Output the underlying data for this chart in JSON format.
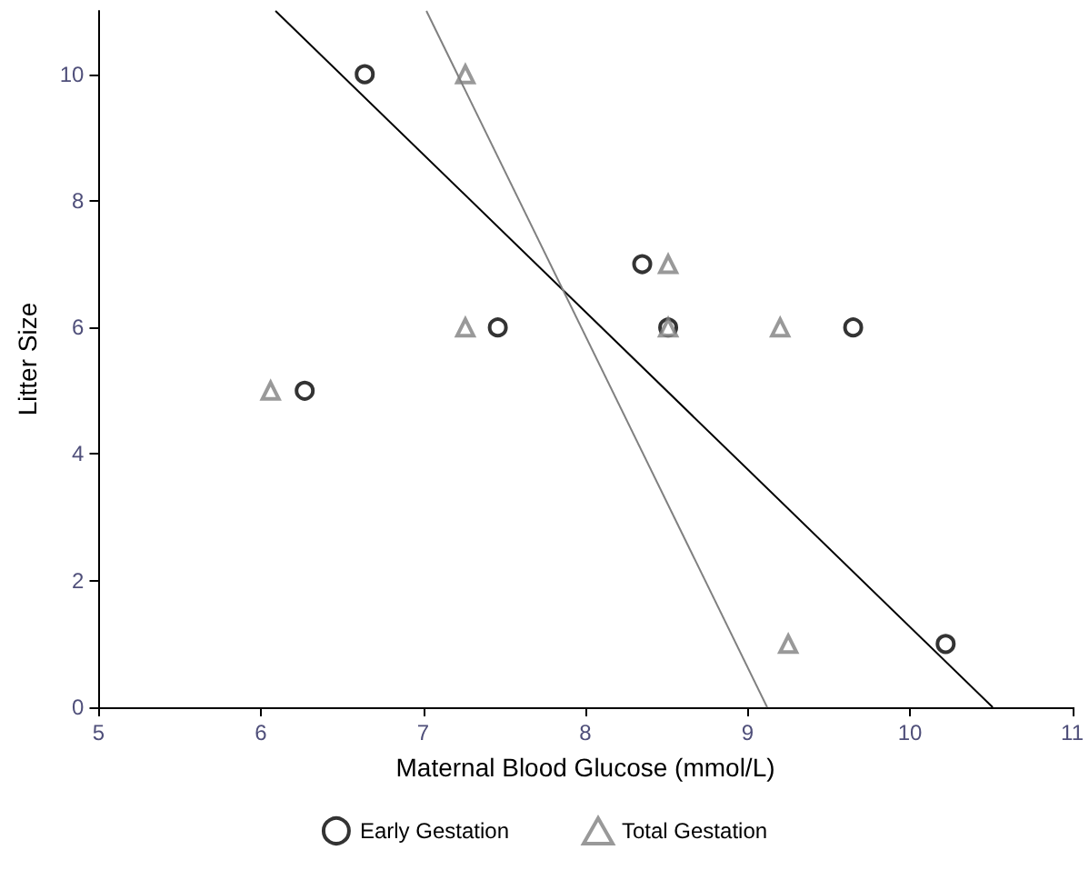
{
  "chart_data": {
    "type": "scatter",
    "xlabel": "Maternal Blood Glucose (mmol/L)",
    "ylabel": "Litter Size",
    "xlim": [
      5,
      11
    ],
    "xticks": [
      5,
      6,
      7,
      8,
      9,
      10,
      11
    ],
    "ylim": [
      0,
      11
    ],
    "yticks": [
      0,
      2,
      4,
      6,
      8,
      10
    ],
    "grid": false,
    "legend": "bottom",
    "series": [
      {
        "name": "Early Gestation",
        "marker": "circle",
        "color": "#000000",
        "x": [
          6.64,
          6.27,
          7.46,
          8.35,
          8.51,
          9.65,
          10.22
        ],
        "values": [
          10,
          5,
          6,
          7,
          6,
          6,
          1
        ]
      },
      {
        "name": "Total Gestation",
        "marker": "triangle",
        "color": "#808080",
        "x": [
          7.26,
          6.06,
          7.26,
          8.51,
          8.51,
          9.2,
          9.25
        ],
        "values": [
          10,
          5,
          6,
          7,
          6,
          6,
          1
        ]
      },
      {
        "type": "line",
        "marker": "none",
        "color": "#000000",
        "x": [
          6.09,
          10.51
        ],
        "values": [
          11,
          0
        ]
      },
      {
        "type": "line",
        "marker": "none",
        "color": "#808080",
        "x": [
          7.02,
          9.12
        ],
        "values": [
          11,
          0
        ]
      }
    ]
  }
}
